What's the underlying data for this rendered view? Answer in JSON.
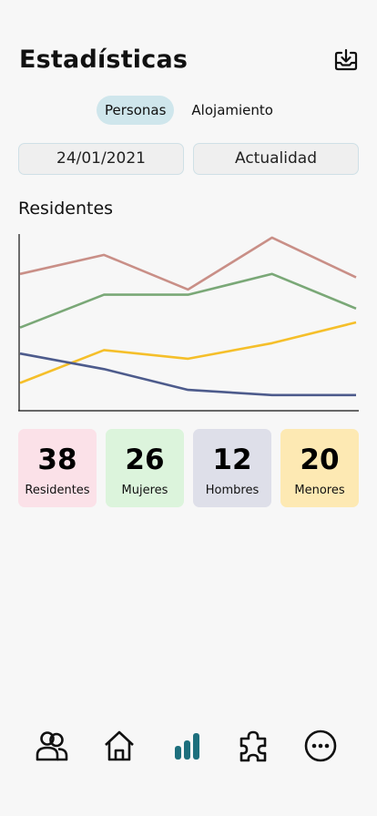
{
  "header": {
    "title": "Estadísticas",
    "download_icon": "download-tray-icon"
  },
  "tabs": [
    {
      "label": "Personas",
      "active": true
    },
    {
      "label": "Alojamiento",
      "active": false
    }
  ],
  "date_range": {
    "start": "24/01/2021",
    "end": "Actualidad"
  },
  "section": {
    "title": "Residentes"
  },
  "chart_data": {
    "type": "line",
    "x": [
      0,
      1,
      2,
      3,
      4
    ],
    "series": [
      {
        "color": "#c98f87",
        "values": [
          78,
          89,
          69,
          99,
          76
        ]
      },
      {
        "color": "#7aa877",
        "values": [
          47,
          66,
          66,
          78,
          58
        ]
      },
      {
        "color": "#f5bf2a",
        "values": [
          15,
          34,
          29,
          38,
          50
        ]
      },
      {
        "color": "#4d5b8c",
        "values": [
          32,
          23,
          11,
          8,
          8
        ]
      }
    ],
    "ylim": [
      0,
      100
    ],
    "grid": false,
    "legend": "none"
  },
  "stats": [
    {
      "value": "38",
      "label": "Residentes",
      "color": "#fbe1e8"
    },
    {
      "value": "26",
      "label": "Mujeres",
      "color": "#dcf4dc"
    },
    {
      "value": "12",
      "label": "Hombres",
      "color": "#dedfe9"
    },
    {
      "value": "20",
      "label": "Menores",
      "color": "#fde9b3"
    }
  ],
  "nav": [
    {
      "icon": "people-icon"
    },
    {
      "icon": "home-icon"
    },
    {
      "icon": "bar-chart-icon",
      "active": true,
      "accent": "#1d6f7d"
    },
    {
      "icon": "puzzle-icon"
    },
    {
      "icon": "more-options-icon"
    }
  ]
}
